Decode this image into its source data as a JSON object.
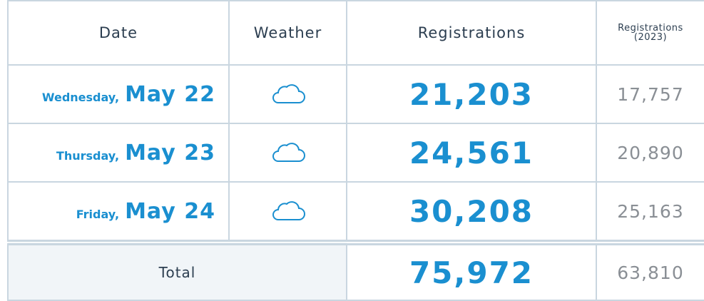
{
  "header": {
    "date": "Date",
    "weather": "Weather",
    "registrations": "Registrations",
    "registrations_prev": "Registrations (2023)"
  },
  "rows": [
    {
      "day": "Wednesday,",
      "date": "May 22",
      "registrations": "21,203",
      "registrations_prev": "17,757"
    },
    {
      "day": "Thursday,",
      "date": "May 23",
      "registrations": "24,561",
      "registrations_prev": "20,890"
    },
    {
      "day": "Friday,",
      "date": "May 24",
      "registrations": "30,208",
      "registrations_prev": "25,163"
    }
  ],
  "total": {
    "label": "Total",
    "registrations": "75,972",
    "registrations_prev": "63,810"
  }
}
